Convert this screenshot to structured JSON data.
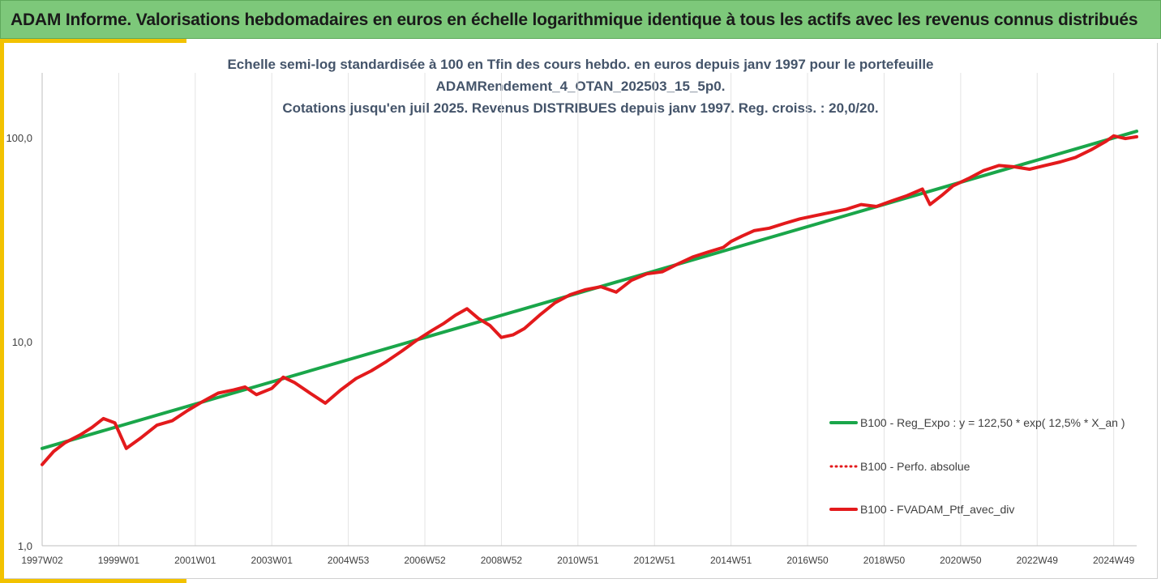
{
  "banner": {
    "title": "ADAM Informe. Valorisations hebdomadaires en euros en échelle logarithmique identique à tous les actifs avec les revenus connus distribués"
  },
  "chart_data": {
    "type": "line",
    "title_lines": [
      "Echelle semi-log standardisée à 100 en Tfin des cours hebdo.  en euros depuis janv 1997 pour le portefeuille",
      "ADAMRendement_4_OTAN_202503_15_5p0.",
      "Cotations  jusqu'en juil 2025. Revenus DISTRIBUES depuis janv 1997. Reg. croiss. : 20,0/20."
    ],
    "y_scale": "log",
    "ylim": [
      1,
      180
    ],
    "y_ticks": [
      {
        "value": 1,
        "label": "1,0"
      },
      {
        "value": 10,
        "label": "10,0"
      },
      {
        "value": 100,
        "label": "100,0"
      }
    ],
    "xlim": [
      1997.0,
      2025.6
    ],
    "x_ticks": [
      {
        "value": 1997.0,
        "label": "1997W02"
      },
      {
        "value": 1999.0,
        "label": "1999W01"
      },
      {
        "value": 2001.0,
        "label": "2001W01"
      },
      {
        "value": 2003.0,
        "label": "2003W01"
      },
      {
        "value": 2005.0,
        "label": "2004W53"
      },
      {
        "value": 2007.0,
        "label": "2006W52"
      },
      {
        "value": 2009.0,
        "label": "2008W52"
      },
      {
        "value": 2011.0,
        "label": "2010W51"
      },
      {
        "value": 2013.0,
        "label": "2012W51"
      },
      {
        "value": 2015.0,
        "label": "2014W51"
      },
      {
        "value": 2017.0,
        "label": "2016W50"
      },
      {
        "value": 2019.0,
        "label": "2018W50"
      },
      {
        "value": 2021.0,
        "label": "2020W50"
      },
      {
        "value": 2023.0,
        "label": "2022W49"
      },
      {
        "value": 2025.0,
        "label": "2024W49"
      }
    ],
    "grid": "vertical",
    "legend_position": "right",
    "series": [
      {
        "name": "B100 - Reg_Expo : y = 122,50 * exp( 12,5% *  X_an )",
        "color": "#1aa64a",
        "style": "solid",
        "x": [
          1997.0,
          2025.6
        ],
        "y": [
          3.0,
          107.5
        ]
      },
      {
        "name": "B100 - Perfo. absolue",
        "color": "#e31a1c",
        "style": "dotted",
        "x": [
          1997.0,
          1997.3,
          1997.6,
          1998.0,
          1998.3,
          1998.6,
          1998.9,
          1999.2,
          1999.6,
          2000.0,
          2000.4,
          2000.8,
          2001.2,
          2001.6,
          2002.0,
          2002.3,
          2002.6,
          2003.0,
          2003.3,
          2003.6,
          2004.0,
          2004.4,
          2004.8,
          2005.2,
          2005.6,
          2006.0,
          2006.4,
          2006.8,
          2007.2,
          2007.5,
          2007.8,
          2008.1,
          2008.4,
          2008.7,
          2009.0,
          2009.3,
          2009.6,
          2010.0,
          2010.4,
          2010.8,
          2011.2,
          2011.6,
          2012.0,
          2012.4,
          2012.8,
          2013.2,
          2013.6,
          2014.0,
          2014.4,
          2014.8,
          2015.0,
          2015.3,
          2015.6,
          2016.0,
          2016.4,
          2016.8,
          2017.2,
          2017.6,
          2018.0,
          2018.4,
          2018.8,
          2019.2,
          2019.6,
          2020.0,
          2020.2,
          2020.5,
          2020.8,
          2021.2,
          2021.6,
          2022.0,
          2022.4,
          2022.8,
          2023.2,
          2023.6,
          2024.0,
          2024.4,
          2024.8,
          2025.0,
          2025.3,
          2025.6
        ],
        "y": [
          2.5,
          2.9,
          3.2,
          3.5,
          3.8,
          4.2,
          4.0,
          3.0,
          3.4,
          3.9,
          4.1,
          4.6,
          5.1,
          5.6,
          5.8,
          6.0,
          5.5,
          5.9,
          6.7,
          6.3,
          5.6,
          5.0,
          5.8,
          6.6,
          7.2,
          8.0,
          9.0,
          10.2,
          11.4,
          12.3,
          13.5,
          14.5,
          13.0,
          12.0,
          10.5,
          10.8,
          11.6,
          13.5,
          15.5,
          17.0,
          18.0,
          18.6,
          17.5,
          20.0,
          21.5,
          22.0,
          24.0,
          26.0,
          27.5,
          29.0,
          31.0,
          33.0,
          35.0,
          36.0,
          38.0,
          40.0,
          41.5,
          43.0,
          44.5,
          47.0,
          46.0,
          49.0,
          52.0,
          56.0,
          47.0,
          52.0,
          58.0,
          63.0,
          69.0,
          73.0,
          72.0,
          70.0,
          73.0,
          76.0,
          80.0,
          87.0,
          96.0,
          102.0,
          99.0,
          101.0
        ]
      },
      {
        "name": "B100 - FVADAM_Ptf_avec_div",
        "color": "#e31a1c",
        "style": "solid",
        "x": [
          1997.0,
          1997.3,
          1997.6,
          1998.0,
          1998.3,
          1998.6,
          1998.9,
          1999.2,
          1999.6,
          2000.0,
          2000.4,
          2000.8,
          2001.2,
          2001.6,
          2002.0,
          2002.3,
          2002.6,
          2003.0,
          2003.3,
          2003.6,
          2004.0,
          2004.4,
          2004.8,
          2005.2,
          2005.6,
          2006.0,
          2006.4,
          2006.8,
          2007.2,
          2007.5,
          2007.8,
          2008.1,
          2008.4,
          2008.7,
          2009.0,
          2009.3,
          2009.6,
          2010.0,
          2010.4,
          2010.8,
          2011.2,
          2011.6,
          2012.0,
          2012.4,
          2012.8,
          2013.2,
          2013.6,
          2014.0,
          2014.4,
          2014.8,
          2015.0,
          2015.3,
          2015.6,
          2016.0,
          2016.4,
          2016.8,
          2017.2,
          2017.6,
          2018.0,
          2018.4,
          2018.8,
          2019.2,
          2019.6,
          2020.0,
          2020.2,
          2020.5,
          2020.8,
          2021.2,
          2021.6,
          2022.0,
          2022.4,
          2022.8,
          2023.2,
          2023.6,
          2024.0,
          2024.4,
          2024.8,
          2025.0,
          2025.3,
          2025.6
        ],
        "y": [
          2.5,
          2.9,
          3.2,
          3.5,
          3.8,
          4.2,
          4.0,
          3.0,
          3.4,
          3.9,
          4.1,
          4.6,
          5.1,
          5.6,
          5.8,
          6.0,
          5.5,
          5.9,
          6.7,
          6.3,
          5.6,
          5.0,
          5.8,
          6.6,
          7.2,
          8.0,
          9.0,
          10.2,
          11.4,
          12.3,
          13.5,
          14.5,
          13.0,
          12.0,
          10.5,
          10.8,
          11.6,
          13.5,
          15.5,
          17.0,
          18.0,
          18.6,
          17.5,
          20.0,
          21.5,
          22.0,
          24.0,
          26.0,
          27.5,
          29.0,
          31.0,
          33.0,
          35.0,
          36.0,
          38.0,
          40.0,
          41.5,
          43.0,
          44.5,
          47.0,
          46.0,
          49.0,
          52.0,
          56.0,
          47.0,
          52.0,
          58.0,
          63.0,
          69.0,
          73.0,
          72.0,
          70.0,
          73.0,
          76.0,
          80.0,
          87.0,
          96.0,
          102.0,
          99.0,
          101.0
        ]
      }
    ]
  }
}
